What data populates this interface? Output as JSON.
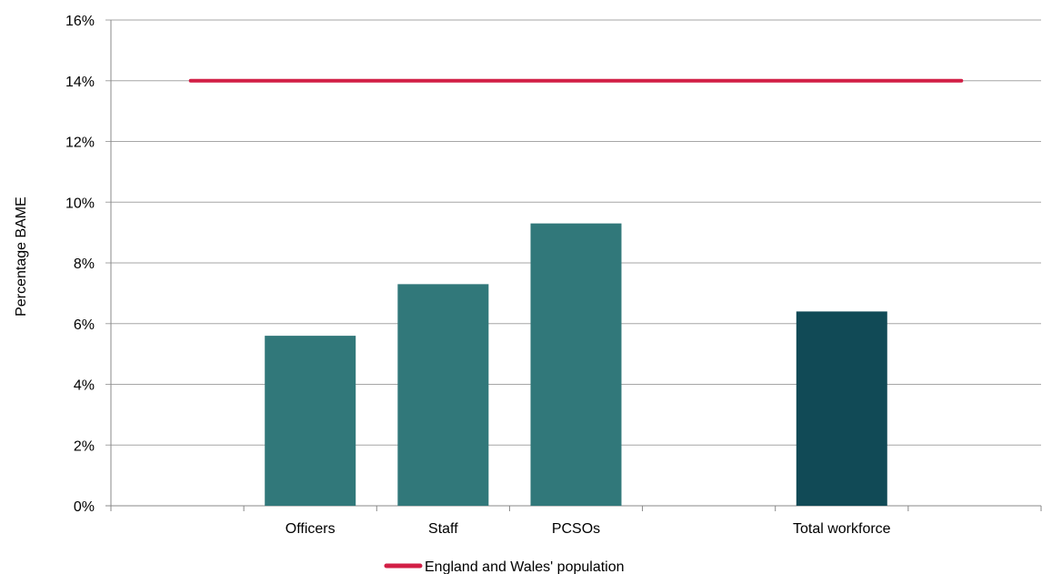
{
  "chart_data": {
    "type": "bar",
    "categories": [
      "",
      "Officers",
      "Staff",
      "PCSOs",
      "",
      "Total workforce",
      ""
    ],
    "series": [
      {
        "values": [
          null,
          5.6,
          7.3,
          9.3,
          null,
          6.4,
          null
        ]
      },
      {
        "name": "England and Wales' population",
        "type": "line",
        "value": 14
      }
    ],
    "ylabel": "Percentage BAME",
    "xlabel": "",
    "ylim": [
      0,
      16
    ],
    "yticks": [
      "0%",
      "2%",
      "4%",
      "6%",
      "8%",
      "10%",
      "12%",
      "14%",
      "16%"
    ],
    "grid": true,
    "legend_position": "bottom",
    "colors": {
      "bar": "#31787A",
      "total_bar": "#114A56",
      "line": "#D21F46",
      "grid": "#A6A6A6"
    }
  }
}
